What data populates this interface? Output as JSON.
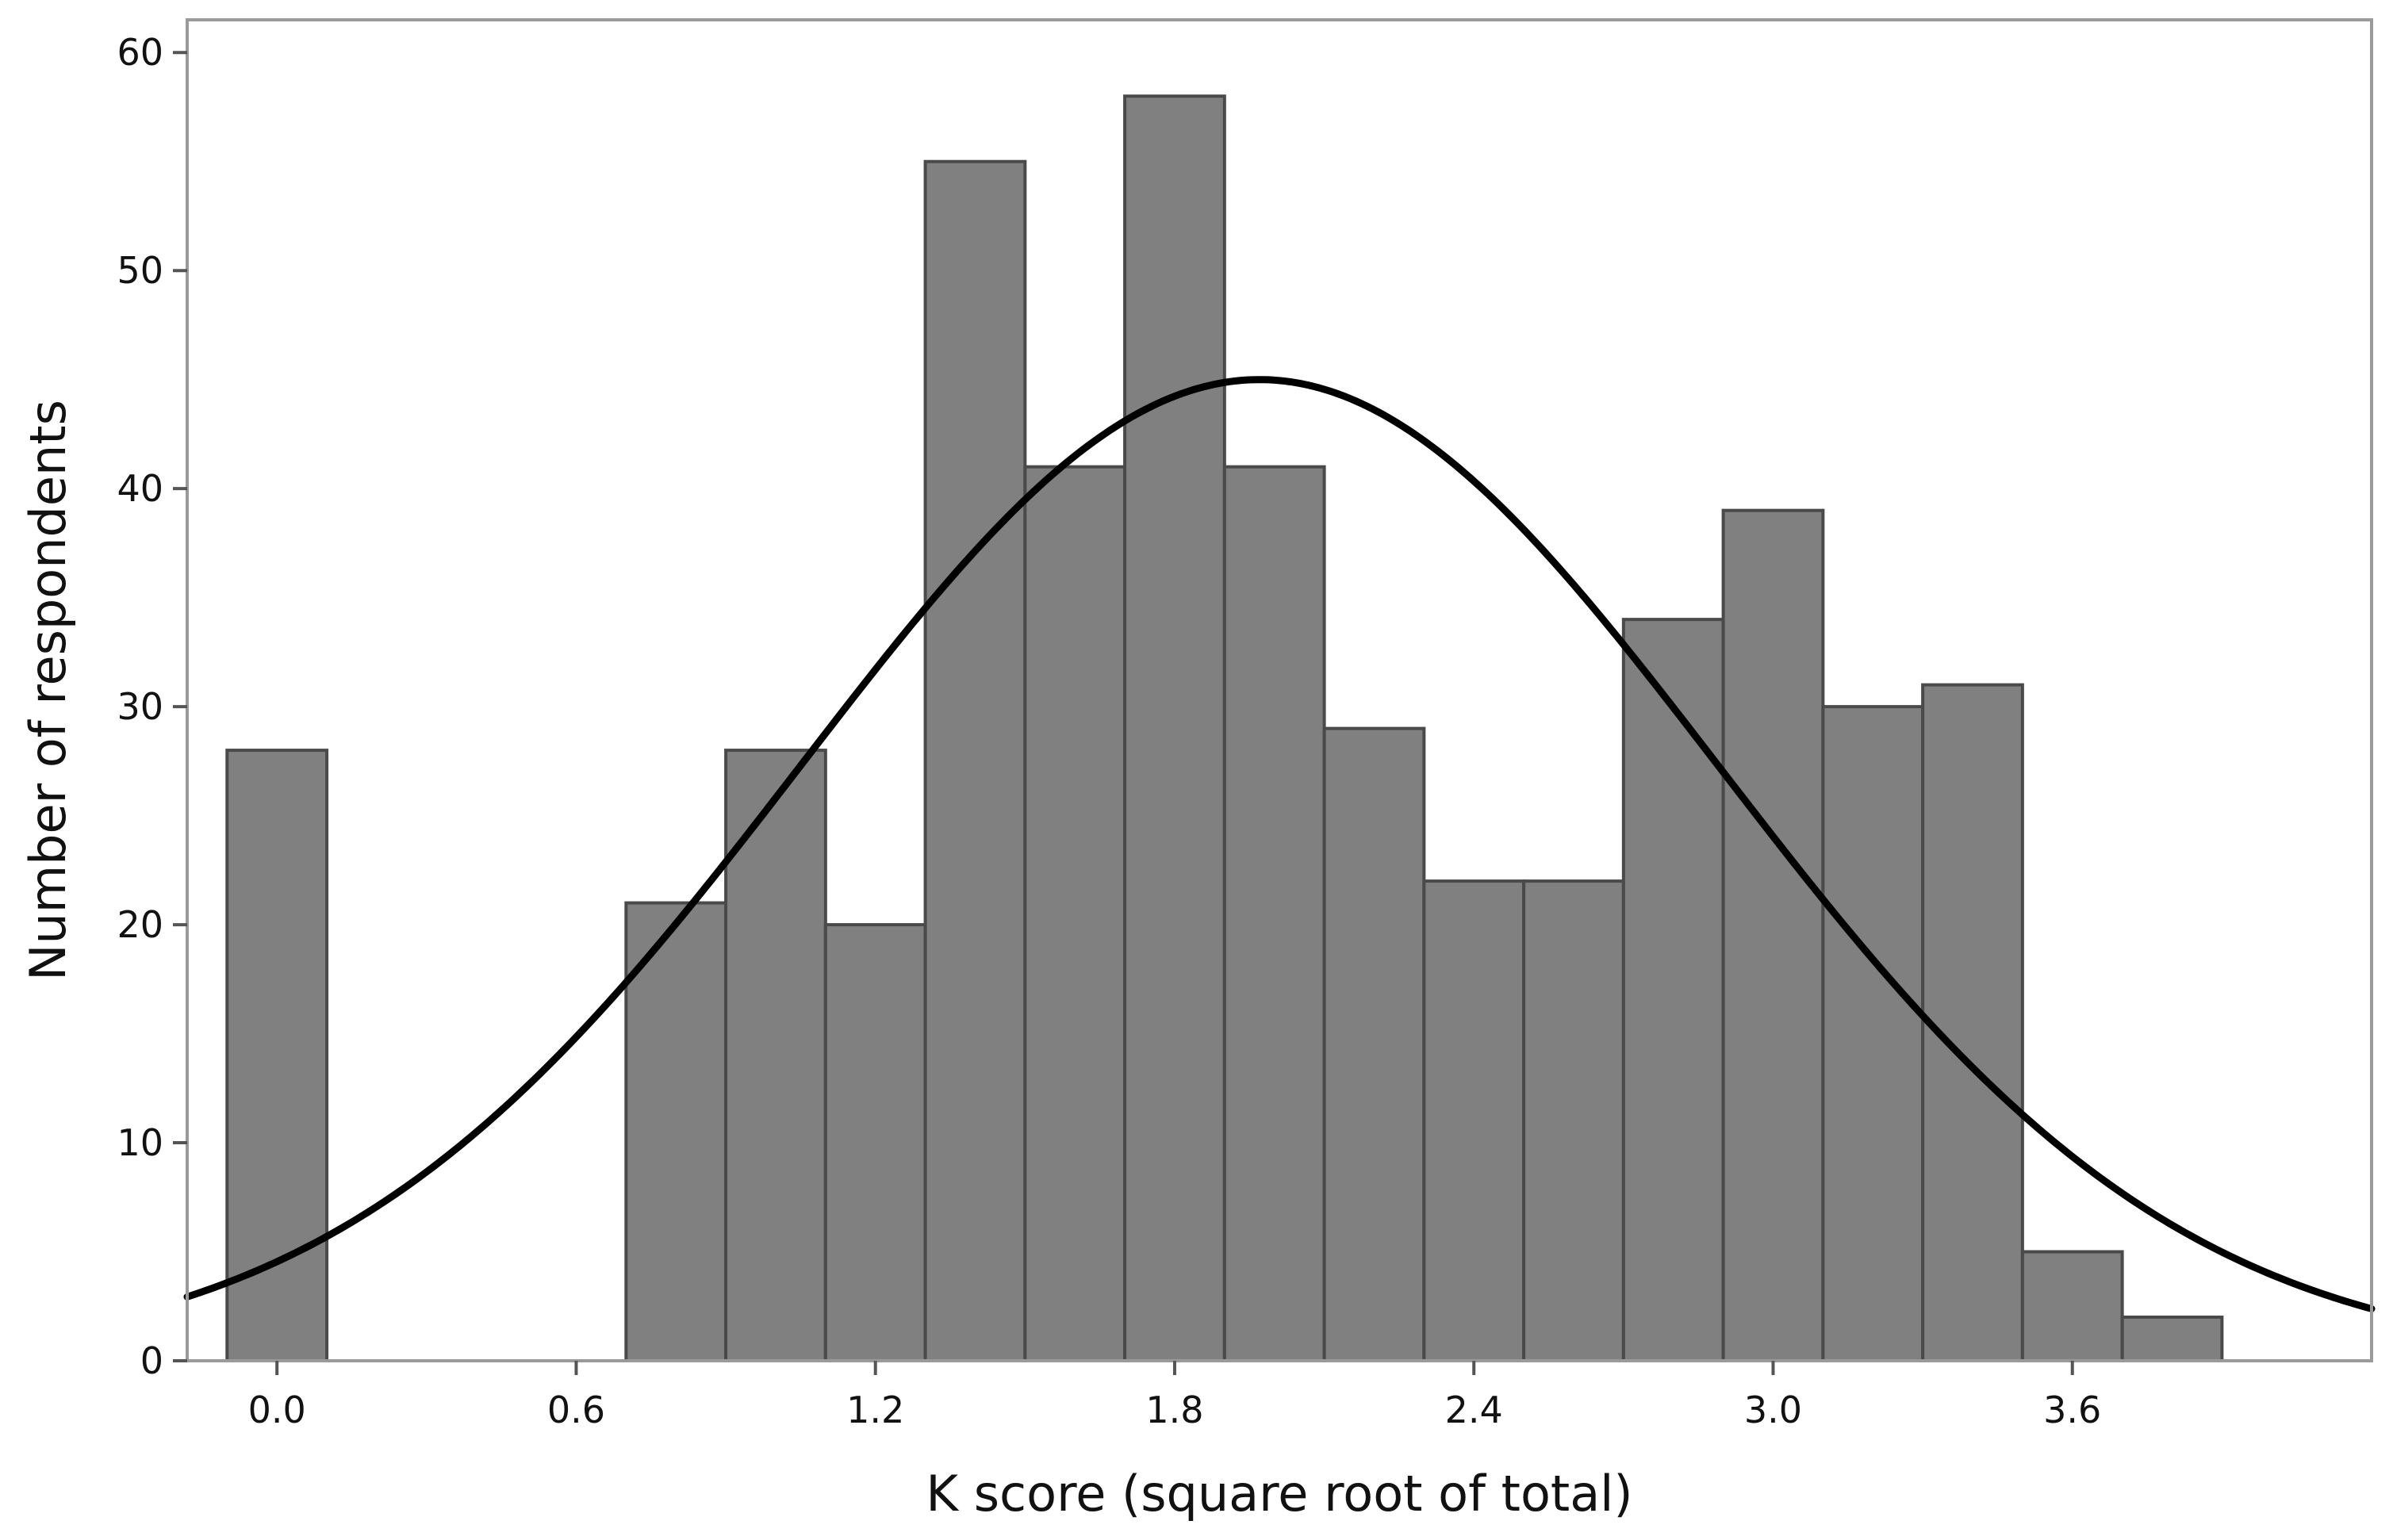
{
  "chart_data": {
    "type": "bar",
    "subtype": "histogram",
    "title": "",
    "xlabel": "K score (square root of total)",
    "ylabel": "Number of respondents",
    "xlim": [
      -0.18,
      4.2
    ],
    "ylim": [
      0,
      61.5
    ],
    "x_ticks": [
      0.0,
      0.6,
      1.2,
      1.8,
      2.4,
      3.0,
      3.6
    ],
    "x_tick_labels": [
      "0.0",
      "0.6",
      "1.2",
      "1.8",
      "2.4",
      "3.0",
      "3.6"
    ],
    "y_ticks": [
      0,
      10,
      20,
      30,
      40,
      50,
      60
    ],
    "y_tick_labels": [
      "0",
      "10",
      "20",
      "30",
      "40",
      "50",
      "60"
    ],
    "bin_width": 0.2,
    "bars": [
      {
        "x": 0.0,
        "value": 28
      },
      {
        "x": 0.8,
        "value": 21
      },
      {
        "x": 1.0,
        "value": 28
      },
      {
        "x": 1.2,
        "value": 20
      },
      {
        "x": 1.4,
        "value": 55
      },
      {
        "x": 1.6,
        "value": 41
      },
      {
        "x": 1.8,
        "value": 58
      },
      {
        "x": 2.0,
        "value": 41
      },
      {
        "x": 2.2,
        "value": 29
      },
      {
        "x": 2.4,
        "value": 22
      },
      {
        "x": 2.6,
        "value": 22
      },
      {
        "x": 2.8,
        "value": 34
      },
      {
        "x": 3.0,
        "value": 39
      },
      {
        "x": 3.2,
        "value": 30
      },
      {
        "x": 3.4,
        "value": 31
      },
      {
        "x": 3.6,
        "value": 5
      },
      {
        "x": 3.8,
        "value": 2
      }
    ],
    "fit_curve": {
      "type": "normal",
      "mean": 1.97,
      "sd": 0.92,
      "peak": 45
    },
    "grid": false,
    "legend": "none",
    "colors": {
      "bar_fill": "#808080",
      "bar_edge": "#4a4a4a",
      "curve": "#000000",
      "frame": "#9a9a9a"
    }
  }
}
